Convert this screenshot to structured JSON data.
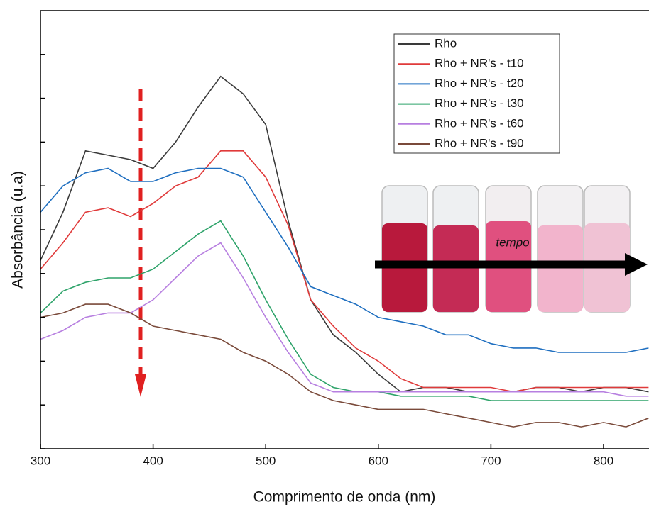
{
  "chart_data": {
    "type": "line",
    "xlabel": "Comprimento de onda (nm)",
    "ylabel": "Absorbância (u.a)",
    "annotation": "tempo",
    "x": [
      300,
      320,
      340,
      360,
      380,
      400,
      420,
      440,
      460,
      480,
      500,
      520,
      540,
      560,
      580,
      600,
      620,
      640,
      660,
      680,
      700,
      720,
      740,
      760,
      780,
      800,
      820,
      840
    ],
    "xlim": [
      300,
      840
    ],
    "xticks": [
      300,
      400,
      500,
      600,
      700,
      800
    ],
    "ylim": [
      0,
      1
    ],
    "yticks": [
      0,
      0.1,
      0.2,
      0.3,
      0.4,
      0.5,
      0.6,
      0.7,
      0.8,
      0.9
    ],
    "legend": "upper right",
    "series": [
      {
        "name": "Rho",
        "color": "#3a3a3a",
        "values": [
          0.43,
          0.54,
          0.68,
          0.67,
          0.66,
          0.64,
          0.7,
          0.78,
          0.85,
          0.81,
          0.74,
          0.52,
          0.34,
          0.26,
          0.22,
          0.17,
          0.13,
          0.14,
          0.14,
          0.13,
          0.13,
          0.13,
          0.14,
          0.14,
          0.13,
          0.14,
          0.14,
          0.13
        ]
      },
      {
        "name": "Rho + NR's - t10",
        "color": "#e03a3a",
        "values": [
          0.41,
          0.47,
          0.54,
          0.55,
          0.53,
          0.56,
          0.6,
          0.62,
          0.68,
          0.68,
          0.62,
          0.51,
          0.34,
          0.28,
          0.23,
          0.2,
          0.16,
          0.14,
          0.14,
          0.14,
          0.14,
          0.13,
          0.14,
          0.14,
          0.14,
          0.14,
          0.14,
          0.14
        ]
      },
      {
        "name": "Rho + NR's - t20",
        "color": "#1f6fc0",
        "values": [
          0.54,
          0.6,
          0.63,
          0.64,
          0.61,
          0.61,
          0.63,
          0.64,
          0.64,
          0.62,
          0.54,
          0.46,
          0.37,
          0.35,
          0.33,
          0.3,
          0.29,
          0.28,
          0.26,
          0.26,
          0.24,
          0.23,
          0.23,
          0.22,
          0.22,
          0.22,
          0.22,
          0.23
        ]
      },
      {
        "name": "Rho + NR's - t30",
        "color": "#2ea36a",
        "values": [
          0.31,
          0.36,
          0.38,
          0.39,
          0.39,
          0.41,
          0.45,
          0.49,
          0.52,
          0.44,
          0.34,
          0.25,
          0.17,
          0.14,
          0.13,
          0.13,
          0.12,
          0.12,
          0.12,
          0.12,
          0.11,
          0.11,
          0.11,
          0.11,
          0.11,
          0.11,
          0.11,
          0.11
        ]
      },
      {
        "name": "Rho + NR's - t60",
        "color": "#b77fe0",
        "values": [
          0.25,
          0.27,
          0.3,
          0.31,
          0.31,
          0.34,
          0.39,
          0.44,
          0.47,
          0.39,
          0.3,
          0.22,
          0.15,
          0.13,
          0.13,
          0.13,
          0.13,
          0.13,
          0.13,
          0.13,
          0.13,
          0.13,
          0.13,
          0.13,
          0.13,
          0.13,
          0.12,
          0.12
        ]
      },
      {
        "name": "Rho + NR's - t90",
        "color": "#7a4a3a",
        "values": [
          0.3,
          0.31,
          0.33,
          0.33,
          0.31,
          0.28,
          0.27,
          0.26,
          0.25,
          0.22,
          0.2,
          0.17,
          0.13,
          0.11,
          0.1,
          0.09,
          0.09,
          0.09,
          0.08,
          0.07,
          0.06,
          0.05,
          0.06,
          0.06,
          0.05,
          0.06,
          0.05,
          0.07
        ]
      }
    ]
  }
}
